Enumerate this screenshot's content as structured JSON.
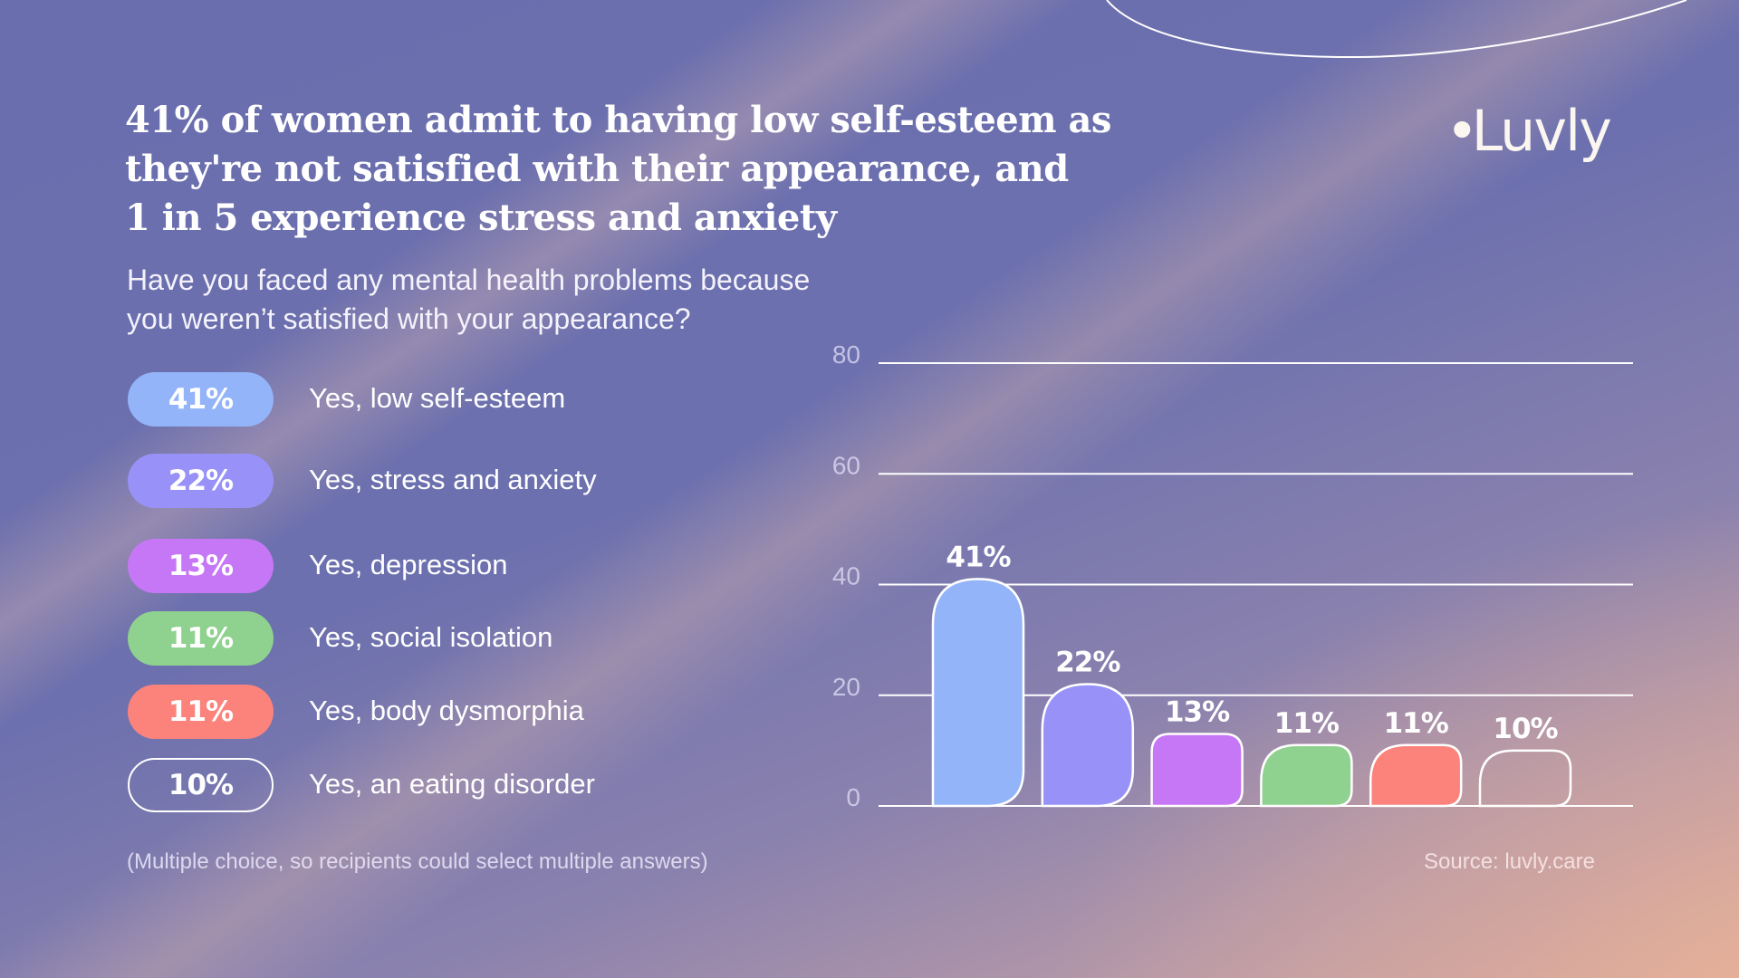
{
  "title": "41% of women admit to having low self-esteem as they're not satisfied with their appearance, and 1 in 5 experience stress and anxiety",
  "title_lines": [
    "41% of women admit to having low self-esteem as",
    "they're not satisfied with their appearance, and",
    "1 in 5 experience stress and anxiety"
  ],
  "subtitle_lines": [
    "Have you faced any mental health problems because",
    "you weren’t satisfied with your appearance?"
  ],
  "logo": {
    "dot": "•",
    "text": "Luvly"
  },
  "legend": [
    {
      "value": "41%",
      "label": "Yes, low self-esteem",
      "color": "#93b4f8",
      "style": "filled"
    },
    {
      "value": "22%",
      "label": "Yes, stress and anxiety",
      "color": "#9892f8",
      "style": "filled"
    },
    {
      "value": "13%",
      "label": "Yes, depression",
      "color": "#c677f5",
      "style": "filled"
    },
    {
      "value": "11%",
      "label": "Yes, social isolation",
      "color": "#8fd18f",
      "style": "filled"
    },
    {
      "value": "11%",
      "label": "Yes, body dysmorphia",
      "color": "#fb837c",
      "style": "filled"
    },
    {
      "value": "10%",
      "label": "Yes, an eating disorder",
      "color": "#ffffff",
      "style": "outline"
    }
  ],
  "footnote": "(Multiple choice, so recipients could select multiple answers)",
  "source": "Source: luvly.care",
  "chart_data": {
    "type": "bar",
    "title": "Have you faced any mental health problems because you weren’t satisfied with your appearance?",
    "categories": [
      "Yes, low self-esteem",
      "Yes, stress and anxiety",
      "Yes, depression",
      "Yes, social isolation",
      "Yes, body dysmorphia",
      "Yes, an eating disorder"
    ],
    "values": [
      41,
      22,
      13,
      11,
      11,
      10
    ],
    "data_labels": [
      "41%",
      "22%",
      "13%",
      "11%",
      "11%",
      "10%"
    ],
    "colors": [
      "#93b4f8",
      "#9892f8",
      "#c677f5",
      "#8fd18f",
      "#fb837c",
      "none"
    ],
    "xlabel": "",
    "ylabel": "",
    "ylim": [
      0,
      80
    ],
    "yticks": [
      0,
      20,
      40,
      60,
      80
    ],
    "grid": true,
    "legend": "left"
  }
}
